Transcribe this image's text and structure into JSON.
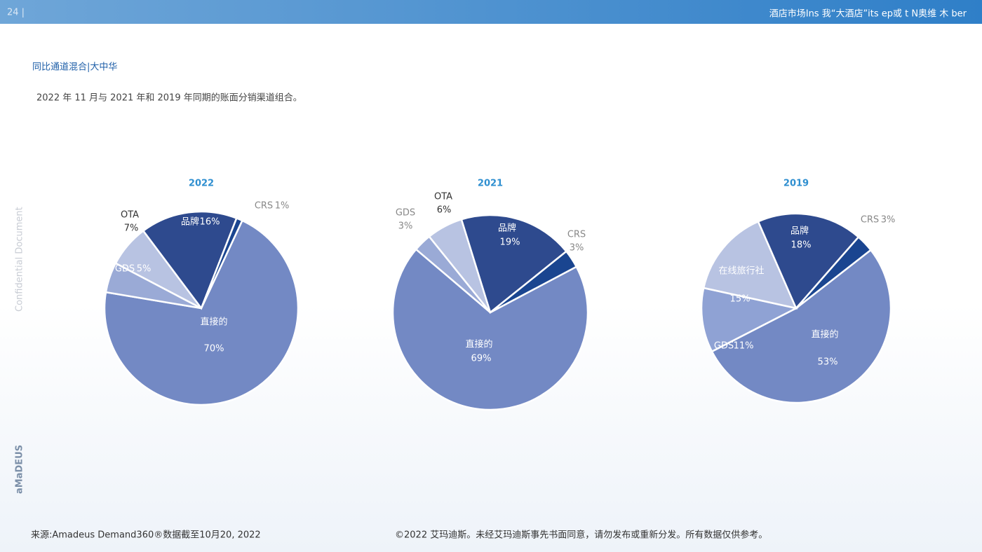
{
  "header": {
    "page": "24 |",
    "banner_text": "酒店市场Ins 我“大酒店”its ep或 t N奥维 木 ber",
    "title": "同比通道混合|大中华",
    "subtitle": "2022 年 11 月与 2021 年和 2019 年同期的账面分销渠道组合。"
  },
  "side": {
    "confidential": "Confidential Document",
    "logo": "aMaDEUS"
  },
  "chart_data": [
    {
      "type": "pie",
      "title": "2022",
      "categories": [
        "直接的",
        "GDS",
        "OTA",
        "品牌",
        "CRS"
      ],
      "values": [
        70,
        5,
        7,
        16,
        1
      ],
      "value_labels": [
        "70%",
        "5%",
        "7%",
        "16%",
        "1%"
      ],
      "colors": [
        "#7389c4",
        "#9aaad6",
        "#b8c3e2",
        "#2e4a8e",
        "#1a4590"
      ]
    },
    {
      "type": "pie",
      "title": "2021",
      "categories": [
        "直接的",
        "GDS",
        "OTA",
        "品牌",
        "CRS"
      ],
      "values": [
        69,
        3,
        6,
        19,
        3
      ],
      "value_labels": [
        "69%",
        "3%",
        "6%",
        "19%",
        "3%"
      ],
      "colors": [
        "#7389c4",
        "#9aaad6",
        "#b8c3e2",
        "#2e4a8e",
        "#1a4590"
      ]
    },
    {
      "type": "pie",
      "title": "2019",
      "categories": [
        "直接的",
        "GDS",
        "在线旅行社",
        "品牌",
        "CRS"
      ],
      "values": [
        53,
        11,
        15,
        18,
        3
      ],
      "value_labels": [
        "53%",
        "11%",
        "15%",
        "18%",
        "3%"
      ],
      "colors": [
        "#7389c4",
        "#8fa2d4",
        "#b8c3e2",
        "#2e4a8e",
        "#1a4590"
      ]
    }
  ],
  "footer": {
    "source": "来源:Amadeus Demand360®数据截至10月20, 2022",
    "copyright": "©2022 艾玛迪斯。未经艾玛迪斯事先书面同意，请勿发布或重新分发。所有数据仅供参考。"
  }
}
